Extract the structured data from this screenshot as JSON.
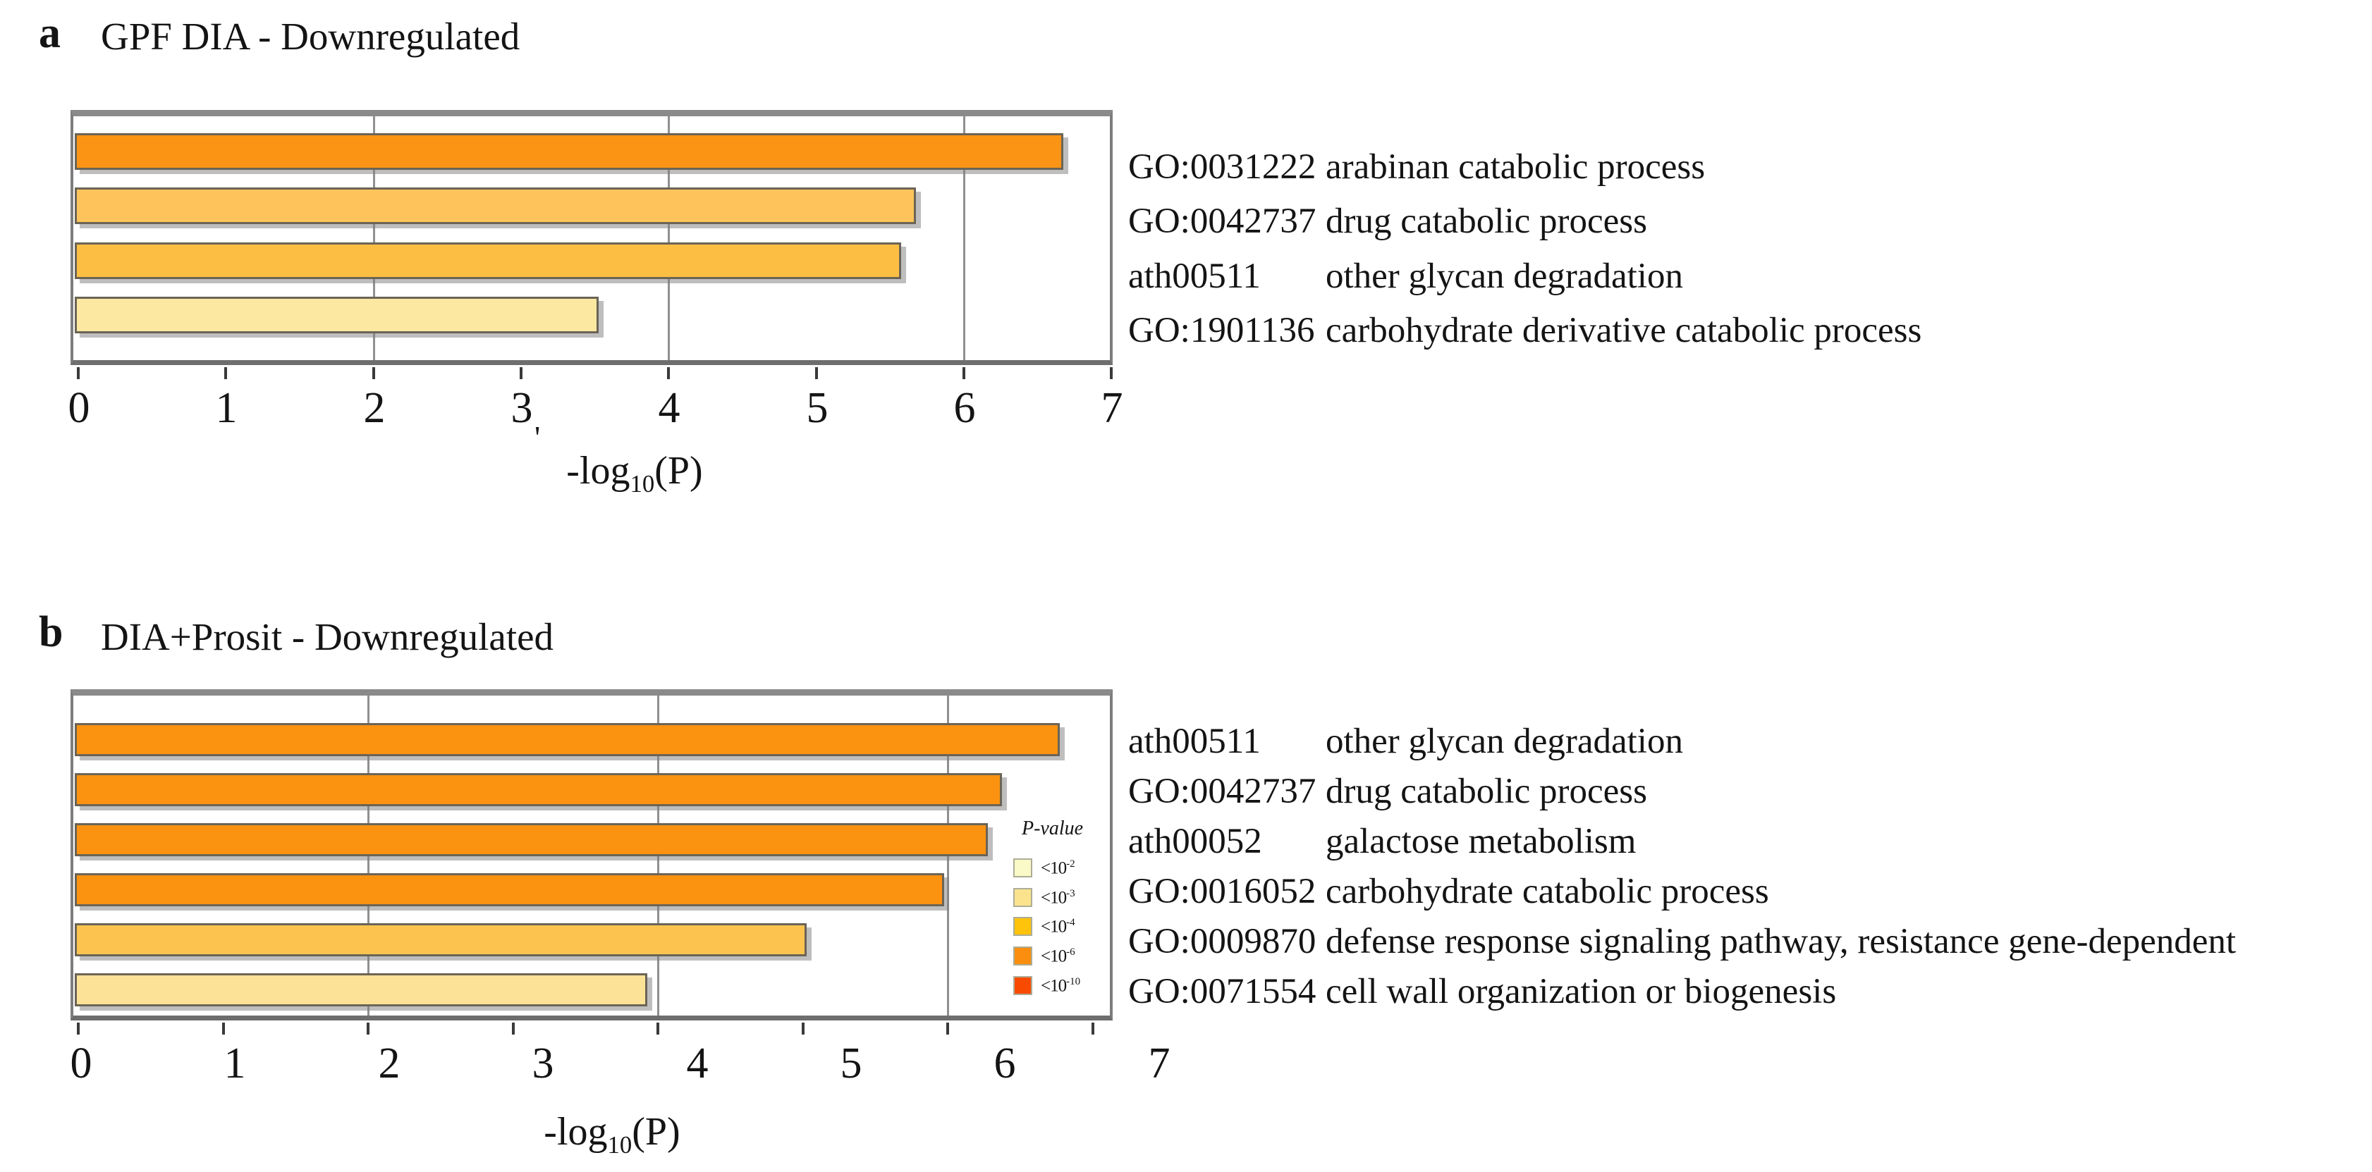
{
  "figure": {
    "background": "#ffffff",
    "description": "Two-panel horizontal bar figure of pathway/GO term enrichment"
  },
  "chart_data": [
    {
      "type": "bar",
      "panel_letter": "a",
      "title": "GPF DIA - Downregulated",
      "orientation": "horizontal",
      "xlabel": {
        "pre": "-log",
        "sub": "10",
        "post": "(P)"
      },
      "stray_mark": "'",
      "xlim": [
        0,
        7
      ],
      "xticks": [
        "0",
        "1",
        "2",
        "3",
        "4",
        "5",
        "6",
        "7"
      ],
      "gridlines_at": [
        2,
        4,
        6
      ],
      "grid": true,
      "bars": [
        {
          "id": "GO:0031222",
          "term": "arabinan catabolic process",
          "value": 6.7,
          "color": "#FB9414"
        },
        {
          "id": "GO:0042737",
          "term": "drug catabolic process",
          "value": 5.7,
          "color": "#FEC45B"
        },
        {
          "id": "ath00511",
          "term": "other glycan degradation",
          "value": 5.6,
          "color": "#FCBF44"
        },
        {
          "id": "GO:1901136",
          "term": "carbohydrate derivative catabolic process",
          "value": 3.55,
          "color": "#FCE8A0"
        }
      ]
    },
    {
      "type": "bar",
      "panel_letter": "b",
      "title": "DIA+Prosit - Downregulated",
      "orientation": "horizontal",
      "xlabel": {
        "pre": "-log",
        "sub": "10",
        "post": "(P)"
      },
      "xlim": [
        0,
        7
      ],
      "xticks": [
        "0",
        "1",
        "2",
        "3",
        "4",
        "5",
        "6",
        "7"
      ],
      "gridlines_at": [
        2,
        4,
        6
      ],
      "grid": true,
      "bars": [
        {
          "id": "ath00511",
          "term": "other glycan degradation",
          "value": 6.8,
          "color": "#FB9210"
        },
        {
          "id": "GO:0042737",
          "term": "drug catabolic process",
          "value": 6.4,
          "color": "#FB9210"
        },
        {
          "id": "ath00052",
          "term": "galactose metabolism",
          "value": 6.3,
          "color": "#FB9210"
        },
        {
          "id": "GO:0016052",
          "term": "carbohydrate catabolic process",
          "value": 6.0,
          "color": "#FB9210"
        },
        {
          "id": "GO:0009870",
          "term": "defense response signaling pathway, resistance gene-dependent",
          "value": 5.05,
          "color": "#FCC44F"
        },
        {
          "id": "GO:0071554",
          "term": "cell wall organization or biogenesis",
          "value": 3.95,
          "color": "#FBE297"
        }
      ],
      "legend": {
        "title": "P-value",
        "position": "inside-right",
        "entries": [
          {
            "label": "<10",
            "exponent": "-2",
            "color": "#FAFAC8"
          },
          {
            "label": "<10",
            "exponent": "-3",
            "color": "#FBE38E"
          },
          {
            "label": "<10",
            "exponent": "-4",
            "color": "#FFC30B"
          },
          {
            "label": "<10",
            "exponent": "-6",
            "color": "#FB8E0E"
          },
          {
            "label": "<10",
            "exponent": "-10",
            "color": "#F94A02"
          }
        ]
      }
    }
  ]
}
